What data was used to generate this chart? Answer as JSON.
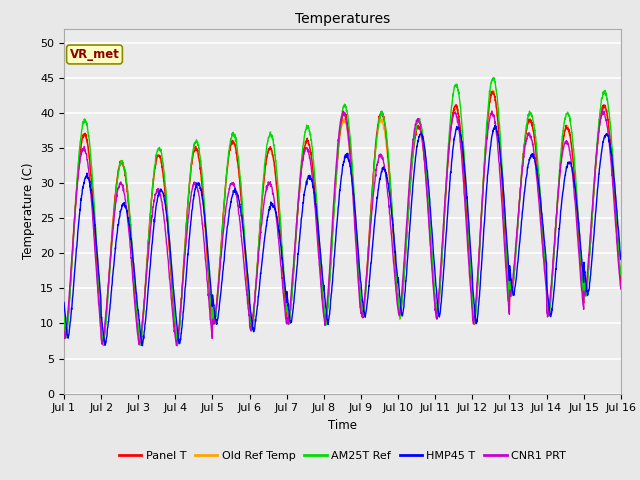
{
  "title": "Temperatures",
  "xlabel": "Time",
  "ylabel": "Temperature (C)",
  "xlim": [
    0,
    15
  ],
  "ylim": [
    0,
    52
  ],
  "yticks": [
    0,
    5,
    10,
    15,
    20,
    25,
    30,
    35,
    40,
    45,
    50
  ],
  "xtick_labels": [
    "Jul 1",
    "Jul 2",
    "Jul 3",
    "Jul 4",
    "Jul 5",
    "Jul 6",
    "Jul 7",
    "Jul 8",
    "Jul 9",
    "Jul 10",
    "Jul 11",
    "Jul 12",
    "Jul 13",
    "Jul 14",
    "Jul 15",
    "Jul 16"
  ],
  "annotation_text": "VR_met",
  "annotation_color": "#8B0000",
  "annotation_bg": "#FFFFC0",
  "annotation_edge": "#8B8B00",
  "bg_color": "#E8E8E8",
  "plot_bg_color": "#EBEBEB",
  "grid_color": "#FFFFFF",
  "series": {
    "Panel T": {
      "color": "#FF0000",
      "lw": 1.0
    },
    "Old Ref Temp": {
      "color": "#FFA500",
      "lw": 1.0
    },
    "AM25T Ref": {
      "color": "#00DD00",
      "lw": 1.0
    },
    "HMP45 T": {
      "color": "#0000FF",
      "lw": 1.0
    },
    "CNR1 PRT": {
      "color": "#CC00CC",
      "lw": 1.0
    }
  },
  "min_temps": [
    8,
    7,
    7,
    7,
    10,
    9,
    10,
    10,
    11,
    11,
    11,
    10,
    14,
    11,
    14
  ],
  "max_temps_panel": [
    37,
    33,
    34,
    35,
    36,
    35,
    36,
    40,
    40,
    38,
    41,
    43,
    39,
    38,
    41
  ],
  "max_temps_ref": [
    37,
    33,
    34,
    35,
    36,
    35,
    36,
    39,
    39,
    38,
    41,
    43,
    39,
    38,
    41
  ],
  "max_temps_am25": [
    39,
    33,
    35,
    36,
    37,
    37,
    38,
    41,
    40,
    39,
    44,
    45,
    40,
    40,
    43
  ],
  "max_temps_hmp45": [
    31,
    27,
    29,
    30,
    29,
    27,
    31,
    34,
    32,
    37,
    38,
    38,
    34,
    33,
    37
  ],
  "max_temps_cnr1": [
    35,
    30,
    29,
    30,
    30,
    30,
    35,
    40,
    34,
    39,
    40,
    40,
    37,
    36,
    40
  ]
}
